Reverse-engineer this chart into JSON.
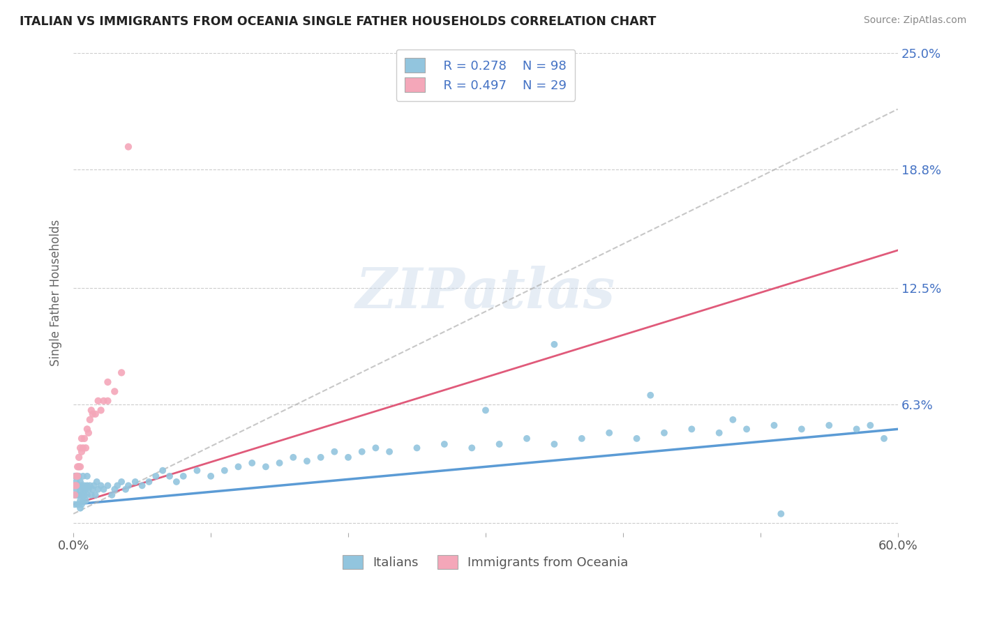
{
  "title": "ITALIAN VS IMMIGRANTS FROM OCEANIA SINGLE FATHER HOUSEHOLDS CORRELATION CHART",
  "source": "Source: ZipAtlas.com",
  "ylabel": "Single Father Households",
  "watermark": "ZIPatlas",
  "legend_r1": "R = 0.278",
  "legend_n1": "N = 98",
  "legend_r2": "R = 0.497",
  "legend_n2": "N = 29",
  "color_italian": "#92c5de",
  "color_oceania": "#f4a7b9",
  "color_trend_italian_solid": "#5b9bd5",
  "color_trend_italian_dashed": "#c0c0c0",
  "color_trend_oceania": "#e05a7a",
  "xmin": 0.0,
  "xmax": 0.6,
  "ymin": -0.005,
  "ymax": 0.25,
  "yticks": [
    0.0,
    0.063,
    0.125,
    0.188,
    0.25
  ],
  "ytick_labels": [
    "",
    "6.3%",
    "12.5%",
    "18.8%",
    "25.0%"
  ],
  "background_color": "#ffffff",
  "italian_x": [
    0.001,
    0.001,
    0.001,
    0.001,
    0.002,
    0.002,
    0.002,
    0.002,
    0.003,
    0.003,
    0.003,
    0.003,
    0.004,
    0.004,
    0.004,
    0.004,
    0.004,
    0.005,
    0.005,
    0.005,
    0.005,
    0.006,
    0.006,
    0.006,
    0.007,
    0.007,
    0.007,
    0.008,
    0.008,
    0.009,
    0.009,
    0.01,
    0.01,
    0.01,
    0.011,
    0.012,
    0.013,
    0.014,
    0.015,
    0.016,
    0.017,
    0.018,
    0.02,
    0.022,
    0.025,
    0.028,
    0.03,
    0.032,
    0.035,
    0.038,
    0.04,
    0.045,
    0.05,
    0.055,
    0.06,
    0.065,
    0.07,
    0.075,
    0.08,
    0.09,
    0.1,
    0.11,
    0.12,
    0.13,
    0.14,
    0.15,
    0.16,
    0.17,
    0.18,
    0.19,
    0.2,
    0.21,
    0.22,
    0.23,
    0.25,
    0.27,
    0.29,
    0.31,
    0.33,
    0.35,
    0.37,
    0.39,
    0.41,
    0.43,
    0.45,
    0.47,
    0.49,
    0.51,
    0.53,
    0.55,
    0.57,
    0.58,
    0.59,
    0.3,
    0.35,
    0.42,
    0.48,
    0.515
  ],
  "italian_y": [
    0.02,
    0.015,
    0.025,
    0.01,
    0.018,
    0.022,
    0.015,
    0.025,
    0.02,
    0.015,
    0.025,
    0.01,
    0.02,
    0.015,
    0.025,
    0.01,
    0.03,
    0.018,
    0.012,
    0.022,
    0.008,
    0.015,
    0.02,
    0.01,
    0.018,
    0.012,
    0.025,
    0.015,
    0.02,
    0.018,
    0.012,
    0.02,
    0.015,
    0.025,
    0.018,
    0.02,
    0.015,
    0.018,
    0.02,
    0.015,
    0.022,
    0.018,
    0.02,
    0.018,
    0.02,
    0.015,
    0.018,
    0.02,
    0.022,
    0.018,
    0.02,
    0.022,
    0.02,
    0.022,
    0.025,
    0.028,
    0.025,
    0.022,
    0.025,
    0.028,
    0.025,
    0.028,
    0.03,
    0.032,
    0.03,
    0.032,
    0.035,
    0.033,
    0.035,
    0.038,
    0.035,
    0.038,
    0.04,
    0.038,
    0.04,
    0.042,
    0.04,
    0.042,
    0.045,
    0.042,
    0.045,
    0.048,
    0.045,
    0.048,
    0.05,
    0.048,
    0.05,
    0.052,
    0.05,
    0.052,
    0.05,
    0.052,
    0.045,
    0.06,
    0.095,
    0.068,
    0.055,
    0.005
  ],
  "oceania_x": [
    0.001,
    0.001,
    0.002,
    0.002,
    0.003,
    0.003,
    0.004,
    0.004,
    0.005,
    0.005,
    0.006,
    0.006,
    0.007,
    0.008,
    0.009,
    0.01,
    0.011,
    0.012,
    0.013,
    0.014,
    0.016,
    0.018,
    0.02,
    0.022,
    0.025,
    0.025,
    0.03,
    0.035,
    0.04
  ],
  "oceania_y": [
    0.015,
    0.02,
    0.02,
    0.025,
    0.025,
    0.03,
    0.03,
    0.035,
    0.03,
    0.04,
    0.038,
    0.045,
    0.04,
    0.045,
    0.04,
    0.05,
    0.048,
    0.055,
    0.06,
    0.058,
    0.058,
    0.065,
    0.06,
    0.065,
    0.065,
    0.075,
    0.07,
    0.08,
    0.2
  ],
  "trend_italian_x0": 0.0,
  "trend_italian_x1": 0.6,
  "trend_italian_y0": 0.01,
  "trend_italian_y1": 0.05,
  "trend_italian_dashed_y0": 0.005,
  "trend_italian_dashed_y1": 0.22,
  "trend_oceania_x0": 0.0,
  "trend_oceania_x1": 0.6,
  "trend_oceania_y0": 0.01,
  "trend_oceania_y1": 0.145
}
